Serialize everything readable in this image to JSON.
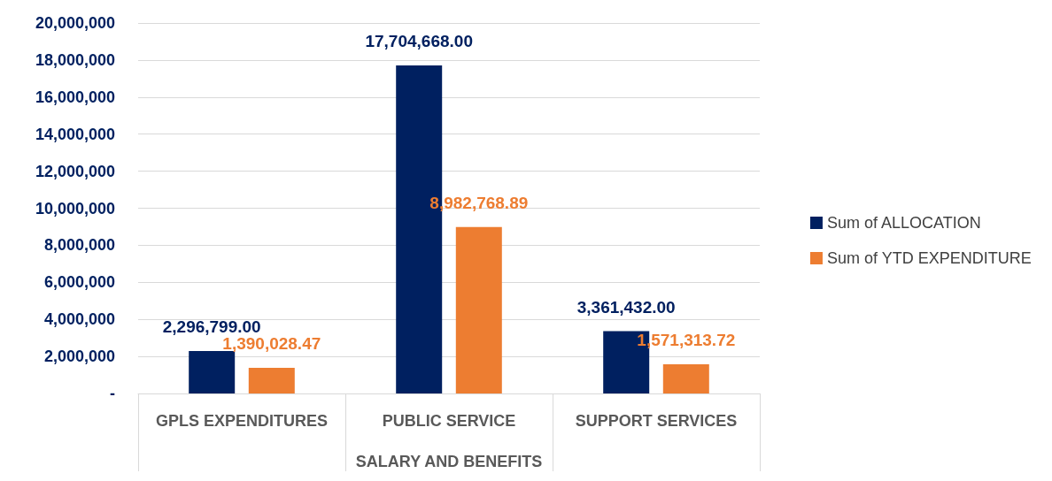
{
  "chart_data": {
    "type": "bar",
    "xlabel": "SALARY AND BENEFITS",
    "categories": [
      "GPLS EXPENDITURES",
      "PUBLIC SERVICE",
      "SUPPORT SERVICES"
    ],
    "series": [
      {
        "name": "Sum of ALLOCATION",
        "color": "#002060",
        "values": [
          2296799.0,
          17704668.0,
          3361432.0
        ],
        "value_labels": [
          "2,296,799.00",
          "17,704,668.00",
          "3,361,432.00"
        ]
      },
      {
        "name": "Sum of YTD EXPENDITURE",
        "color": "#ed7d31",
        "values": [
          1390028.47,
          8982768.89,
          1571313.72
        ],
        "value_labels": [
          "1,390,028.47",
          "8,982,768.89",
          "1,571,313.72"
        ]
      }
    ],
    "ylim": [
      0,
      20000000
    ],
    "yticks": [
      {
        "value": 0,
        "label": "-"
      },
      {
        "value": 2000000,
        "label": "2,000,000"
      },
      {
        "value": 4000000,
        "label": "4,000,000"
      },
      {
        "value": 6000000,
        "label": "6,000,000"
      },
      {
        "value": 8000000,
        "label": "8,000,000"
      },
      {
        "value": 10000000,
        "label": "10,000,000"
      },
      {
        "value": 12000000,
        "label": "12,000,000"
      },
      {
        "value": 14000000,
        "label": "14,000,000"
      },
      {
        "value": 16000000,
        "label": "16,000,000"
      },
      {
        "value": 18000000,
        "label": "18,000,000"
      },
      {
        "value": 20000000,
        "label": "20,000,000"
      }
    ],
    "grid": "y",
    "legend": "right"
  }
}
